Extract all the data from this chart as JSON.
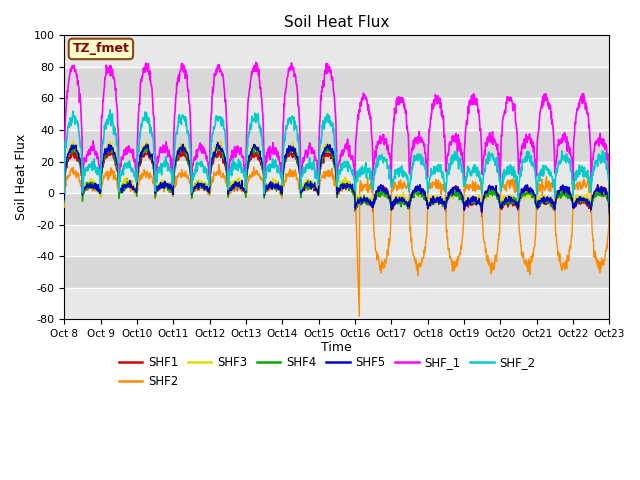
{
  "title": "Soil Heat Flux",
  "ylabel": "Soil Heat Flux",
  "xlabel": "Time",
  "xlabels": [
    "Oct 8",
    "Oct 9",
    "Oct 10",
    "Oct 11",
    "Oct 12",
    "Oct 13",
    "Oct 14",
    "Oct 15",
    "Oct 16",
    "Oct 17",
    "Oct 18",
    "Oct 19",
    "Oct 20",
    "Oct 21",
    "Oct 22",
    "Oct 23"
  ],
  "ylim": [
    -80,
    100
  ],
  "yticks": [
    -80,
    -60,
    -40,
    -20,
    0,
    20,
    40,
    60,
    80,
    100
  ],
  "colors": {
    "SHF1": "#cc0000",
    "SHF2": "#ff8c00",
    "SHF3": "#dddd00",
    "SHF4": "#00aa00",
    "SHF5": "#0000cc",
    "SHF_1": "#ff00ff",
    "SHF_2": "#00cccc"
  },
  "legend_box_color": "#ffffcc",
  "legend_box_edge": "#8b4513",
  "tz_fmet_color": "#8b0000",
  "fig_bg": "#ffffff",
  "plot_bg": "#e8e8e8",
  "band_colors": [
    "#e0e0e0",
    "#d0d0d0"
  ],
  "n_points": 1440
}
